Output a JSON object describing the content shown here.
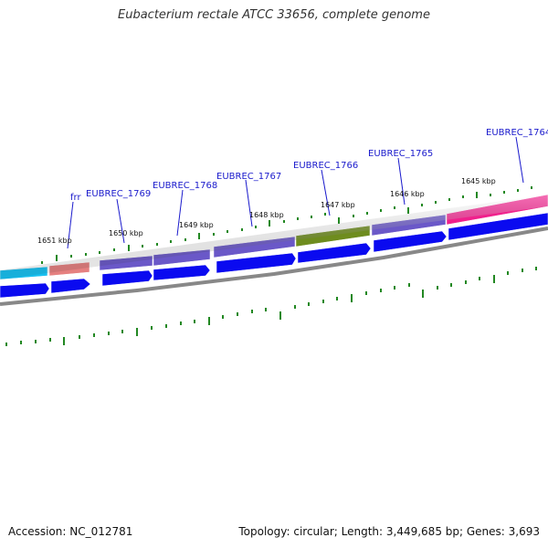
{
  "title": "Eubacterium rectale ATCC 33656, complete genome",
  "footer": {
    "accession": "Accession: NC_012781",
    "summary": "Topology: circular; Length: 3,449,685 bp; Genes: 3,693"
  },
  "gene_labels": [
    "frr",
    "EUBREC_1769",
    "EUBREC_1768",
    "EUBREC_1767",
    "EUBREC_1766",
    "EUBREC_1765",
    "EUBREC_1764"
  ],
  "kbp_labels": [
    "1651 kbp",
    "1650 kbp",
    "1649 kbp",
    "1648 kbp",
    "1647 kbp",
    "1646 kbp",
    "1645 kbp"
  ],
  "colors": {
    "label_blue": "#1a1acc",
    "tick_green": "#228822",
    "cds_blue": "#0a0af0",
    "backbone_gray": "#888888",
    "frr": "#e58080",
    "gene_cyan": "#18c0f0",
    "gene_purple": "#6a58c8",
    "gene_olive": "#6e8c1e",
    "gene_pink": "#f0208c"
  }
}
